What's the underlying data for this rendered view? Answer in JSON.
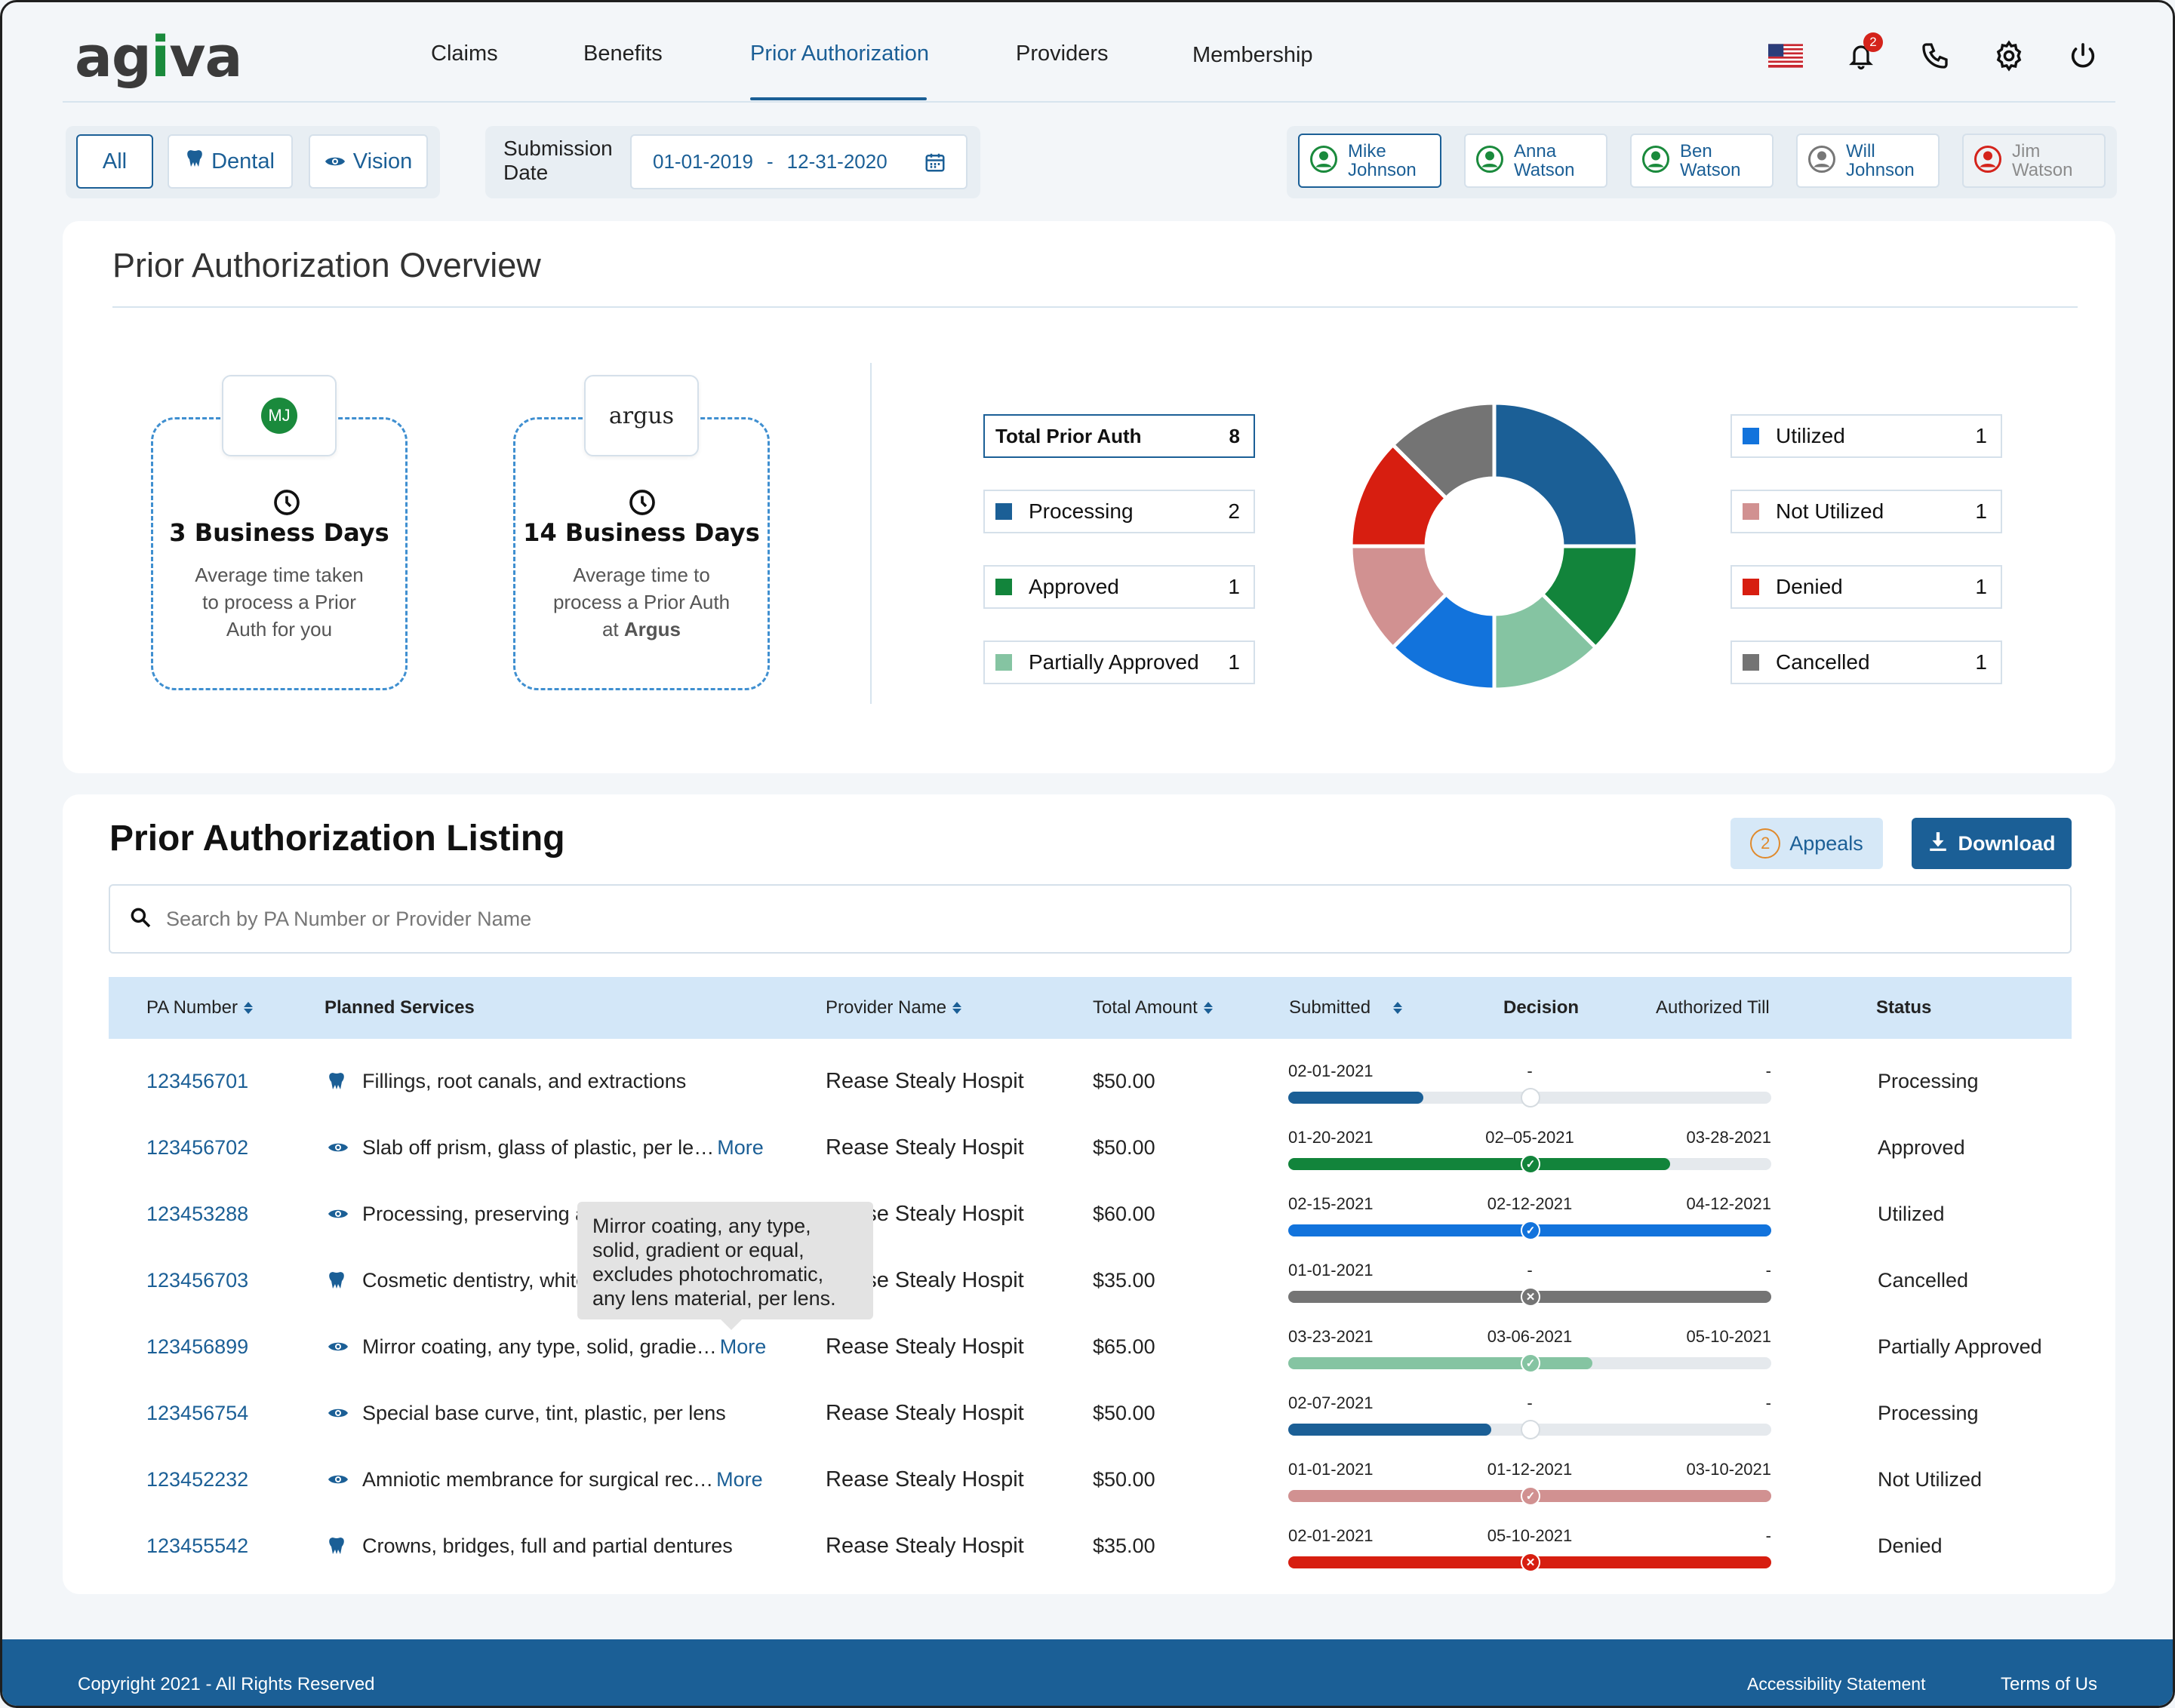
{
  "brand": {
    "name_a": "ag",
    "name_i": "i",
    "name_b": "va"
  },
  "nav": {
    "items": [
      {
        "label": "Claims",
        "active": false
      },
      {
        "label": "Benefits",
        "active": false
      },
      {
        "label": "Prior Authorization",
        "active": true
      },
      {
        "label": "Providers",
        "active": false
      },
      {
        "label": "Membership",
        "active": false
      }
    ],
    "notification_count": "2",
    "icons": [
      "us-flag-icon",
      "bell-icon",
      "phone-icon",
      "settings-icon",
      "power-icon"
    ]
  },
  "filters": {
    "types": [
      {
        "label": "All",
        "icon": "",
        "active": true
      },
      {
        "label": "Dental",
        "icon": "tooth-icon",
        "active": false
      },
      {
        "label": "Vision",
        "icon": "eye-icon",
        "active": false
      }
    ],
    "submission_label_1": "Submission",
    "submission_label_2": "Date",
    "date_from": "01-01-2019",
    "date_sep": "-",
    "date_to": "12-31-2020"
  },
  "members": [
    {
      "first": "Mike",
      "last": "Johnson",
      "color": "#1a8a3c",
      "active": true
    },
    {
      "first": "Anna",
      "last": "Watson",
      "color": "#1a8a3c",
      "active": false
    },
    {
      "first": "Ben",
      "last": "Watson",
      "color": "#1a8a3c",
      "active": false
    },
    {
      "first": "Will",
      "last": "Johnson",
      "color": "#777777",
      "active": false
    },
    {
      "first": "Jim",
      "last": "Watson",
      "color": "#d4231b",
      "active": false,
      "dim": true
    }
  ],
  "overview": {
    "title": "Prior Authorization Overview",
    "cards": [
      {
        "logo": "MJ",
        "days": "3 Business Days",
        "desc_1": "Average time taken",
        "desc_2": "to process a Prior",
        "desc_3": "Auth for you"
      },
      {
        "logo": "argus",
        "days": "14 Business Days",
        "desc_1": "Average time to",
        "desc_2": "process a Prior Auth",
        "desc_3": "at ",
        "desc_bold": "Argus"
      }
    ],
    "total_label": "Total Prior Auth",
    "total_value": "8"
  },
  "chart_data": {
    "type": "pie",
    "slices": [
      {
        "label": "Processing",
        "value": 2,
        "color": "#1b5f96"
      },
      {
        "label": "Approved",
        "value": 1,
        "color": "#12843b"
      },
      {
        "label": "Partially Approved",
        "value": 1,
        "color": "#85c4a2"
      },
      {
        "label": "Utilized",
        "value": 1,
        "color": "#1273dc"
      },
      {
        "label": "Not Utilized",
        "value": 1,
        "color": "#d19191"
      },
      {
        "label": "Denied",
        "value": 1,
        "color": "#d71e10"
      },
      {
        "label": "Cancelled",
        "value": 1,
        "color": "#747474"
      }
    ],
    "legend_left": [
      {
        "label": "Processing",
        "value": "2",
        "color": "#1b5f96"
      },
      {
        "label": "Approved",
        "value": "1",
        "color": "#12843b"
      },
      {
        "label": "Partially Approved",
        "value": "1",
        "color": "#85c4a2"
      }
    ],
    "legend_right": [
      {
        "label": "Utilized",
        "value": "1",
        "color": "#1273dc"
      },
      {
        "label": "Not Utilized",
        "value": "1",
        "color": "#d19191"
      },
      {
        "label": "Denied",
        "value": "1",
        "color": "#d71e10"
      },
      {
        "label": "Cancelled",
        "value": "1",
        "color": "#747474"
      }
    ]
  },
  "listing": {
    "title": "Prior Authorization Listing",
    "appeals_count": "2",
    "appeals_label": "Appeals",
    "download_label": "Download",
    "search_placeholder": "Search by PA Number or Provider Name",
    "headers": {
      "pa": "PA Number",
      "services": "Planned Services",
      "provider": "Provider Name",
      "amount": "Total Amount",
      "submitted": "Submitted",
      "decision": "Decision",
      "authorized": "Authorized Till",
      "status": "Status"
    },
    "rows": [
      {
        "pa": "123456701",
        "icon": "tooth-icon",
        "service": "Fillings, root canals, and extractions",
        "more": "",
        "provider": "Rease Stealy Hospit",
        "amount": "$50.00",
        "submitted": "02-01-2021",
        "decision": "-",
        "authorized": "-",
        "status": "Processing",
        "color": "#1b5f96",
        "progress": 0.28,
        "marker": "none"
      },
      {
        "pa": "123456702",
        "icon": "eye-icon",
        "service": "Slab off prism, glass of plastic, per le…",
        "more": "More",
        "provider": "Rease Stealy Hospit",
        "amount": "$50.00",
        "submitted": "01-20-2021",
        "decision": "02–05-2021",
        "authorized": "03-28-2021",
        "status": "Approved",
        "color": "#12843b",
        "progress": 0.79,
        "marker": "check"
      },
      {
        "pa": "123453288",
        "icon": "eye-icon",
        "service": "Processing, preserving ar",
        "more": "",
        "provider": "Rease Stealy Hospit",
        "amount": "$60.00",
        "submitted": "02-15-2021",
        "decision": "02-12-2021",
        "authorized": "04-12-2021",
        "status": "Utilized",
        "color": "#1273dc",
        "progress": 1.0,
        "marker": "check"
      },
      {
        "pa": "123456703",
        "icon": "tooth-icon",
        "service": "Cosmetic dentistry, white",
        "more": "",
        "provider": "Rease Stealy Hospit",
        "amount": "$35.00",
        "submitted": "01-01-2021",
        "decision": "-",
        "authorized": "-",
        "status": "Cancelled",
        "color": "#747474",
        "progress": 1.0,
        "marker": "x"
      },
      {
        "pa": "123456899",
        "icon": "eye-icon",
        "service": "Mirror coating, any type, solid, gradie…",
        "more": "More",
        "provider": "Rease Stealy Hospit",
        "amount": "$65.00",
        "submitted": "03-23-2021",
        "decision": "03-06-2021",
        "authorized": "05-10-2021",
        "status": "Partially Approved",
        "color": "#85c4a2",
        "progress": 0.63,
        "marker": "check"
      },
      {
        "pa": "123456754",
        "icon": "eye-icon",
        "service": "Special base curve, tint, plastic, per lens",
        "more": "",
        "provider": "Rease Stealy Hospit",
        "amount": "$50.00",
        "submitted": "02-07-2021",
        "decision": "-",
        "authorized": "-",
        "status": "Processing",
        "color": "#1b5f96",
        "progress": 0.42,
        "marker": "none"
      },
      {
        "pa": "123452232",
        "icon": "eye-icon",
        "service": "Amniotic membrance for surgical rec…",
        "more": "More",
        "provider": "Rease Stealy Hospit",
        "amount": "$50.00",
        "submitted": "01-01-2021",
        "decision": "01-12-2021",
        "authorized": "03-10-2021",
        "status": "Not Utilized",
        "color": "#d19191",
        "progress": 1.0,
        "marker": "check"
      },
      {
        "pa": "123455542",
        "icon": "tooth-icon",
        "service": "Crowns, bridges, full and partial dentures",
        "more": "",
        "provider": "Rease Stealy Hospit",
        "amount": "$35.00",
        "submitted": "02-01-2021",
        "decision": "05-10-2021",
        "authorized": "-",
        "status": "Denied",
        "color": "#d71e10",
        "progress": 1.0,
        "marker": "x"
      }
    ],
    "tooltip": "Mirror coating, any type, solid, gradient or equal, excludes photochromatic, any lens material, per lens."
  },
  "footer": {
    "copyright": "Copyright 2021 - All Rights Reserved",
    "accessibility": "Accessibility Statement",
    "terms": "Terms of Us"
  }
}
